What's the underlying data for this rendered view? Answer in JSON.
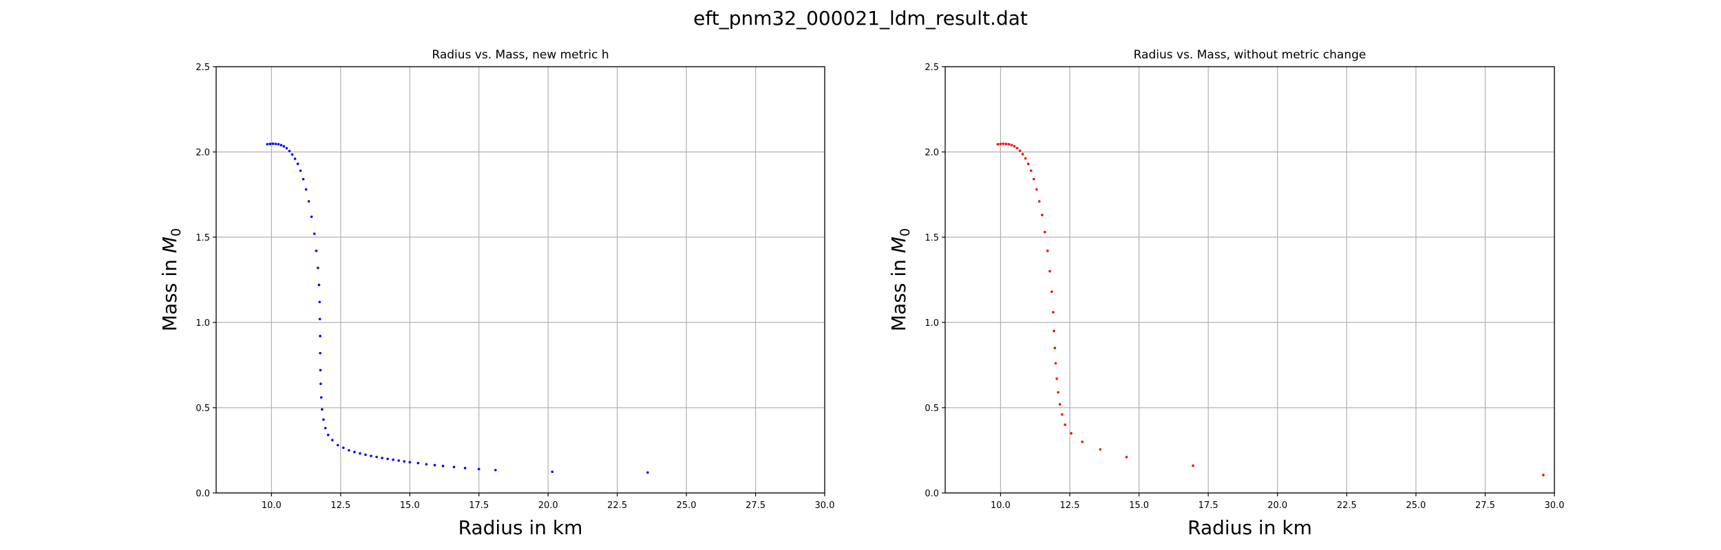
{
  "figure": {
    "title": "eft_pnm32_000021_ldm_result.dat"
  },
  "chart_data": [
    {
      "type": "scatter",
      "title": "Radius vs. Mass, new metric h",
      "xlabel": "Radius in km",
      "ylabel_prefix": "Mass in ",
      "ylabel_symbol": "M",
      "ylabel_subscript": "0",
      "xlim": [
        8.0,
        30.0
      ],
      "ylim": [
        0.0,
        2.5
      ],
      "xticks": [
        10.0,
        12.5,
        15.0,
        17.5,
        20.0,
        22.5,
        25.0,
        27.5,
        30.0
      ],
      "yticks": [
        0.0,
        0.5,
        1.0,
        1.5,
        2.0,
        2.5
      ],
      "grid": true,
      "series": [
        {
          "color": "#0000ff",
          "points": [
            [
              9.85,
              2.045
            ],
            [
              9.95,
              2.047
            ],
            [
              10.05,
              2.048
            ],
            [
              10.15,
              2.047
            ],
            [
              10.25,
              2.045
            ],
            [
              10.35,
              2.04
            ],
            [
              10.45,
              2.033
            ],
            [
              10.55,
              2.022
            ],
            [
              10.65,
              2.005
            ],
            [
              10.75,
              1.985
            ],
            [
              10.85,
              1.96
            ],
            [
              10.95,
              1.93
            ],
            [
              11.05,
              1.89
            ],
            [
              11.15,
              1.84
            ],
            [
              11.25,
              1.78
            ],
            [
              11.35,
              1.71
            ],
            [
              11.45,
              1.62
            ],
            [
              11.55,
              1.52
            ],
            [
              11.62,
              1.42
            ],
            [
              11.68,
              1.32
            ],
            [
              11.72,
              1.22
            ],
            [
              11.74,
              1.12
            ],
            [
              11.75,
              1.02
            ],
            [
              11.76,
              0.92
            ],
            [
              11.76,
              0.82
            ],
            [
              11.77,
              0.72
            ],
            [
              11.78,
              0.64
            ],
            [
              11.8,
              0.56
            ],
            [
              11.83,
              0.49
            ],
            [
              11.88,
              0.43
            ],
            [
              11.95,
              0.38
            ],
            [
              12.05,
              0.34
            ],
            [
              12.2,
              0.31
            ],
            [
              12.4,
              0.28
            ],
            [
              12.6,
              0.265
            ],
            [
              12.8,
              0.25
            ],
            [
              13.0,
              0.24
            ],
            [
              13.2,
              0.232
            ],
            [
              13.4,
              0.224
            ],
            [
              13.6,
              0.217
            ],
            [
              13.8,
              0.211
            ],
            [
              14.0,
              0.205
            ],
            [
              14.2,
              0.2
            ],
            [
              14.4,
              0.195
            ],
            [
              14.6,
              0.19
            ],
            [
              14.8,
              0.185
            ],
            [
              15.0,
              0.18
            ],
            [
              15.3,
              0.175
            ],
            [
              15.6,
              0.168
            ],
            [
              15.9,
              0.163
            ],
            [
              16.2,
              0.158
            ],
            [
              16.6,
              0.152
            ],
            [
              17.0,
              0.146
            ],
            [
              17.5,
              0.14
            ],
            [
              18.1,
              0.134
            ],
            [
              20.15,
              0.124
            ],
            [
              23.6,
              0.12
            ]
          ]
        }
      ]
    },
    {
      "type": "scatter",
      "title": "Radius vs. Mass, without metric change",
      "xlabel": "Radius in km",
      "ylabel_prefix": "Mass in ",
      "ylabel_symbol": "M",
      "ylabel_subscript": "0",
      "xlim": [
        8.0,
        30.0
      ],
      "ylim": [
        0.0,
        2.5
      ],
      "xticks": [
        10.0,
        12.5,
        15.0,
        17.5,
        20.0,
        22.5,
        25.0,
        27.5,
        30.0
      ],
      "yticks": [
        0.0,
        0.5,
        1.0,
        1.5,
        2.0,
        2.5
      ],
      "grid": true,
      "series": [
        {
          "color": "#ff0000",
          "points": [
            [
              9.9,
              2.045
            ],
            [
              10.0,
              2.047
            ],
            [
              10.1,
              2.048
            ],
            [
              10.2,
              2.047
            ],
            [
              10.3,
              2.045
            ],
            [
              10.4,
              2.04
            ],
            [
              10.5,
              2.033
            ],
            [
              10.6,
              2.022
            ],
            [
              10.7,
              2.007
            ],
            [
              10.8,
              1.987
            ],
            [
              10.9,
              1.962
            ],
            [
              11.0,
              1.93
            ],
            [
              11.1,
              1.89
            ],
            [
              11.2,
              1.84
            ],
            [
              11.3,
              1.78
            ],
            [
              11.4,
              1.71
            ],
            [
              11.5,
              1.63
            ],
            [
              11.6,
              1.53
            ],
            [
              11.7,
              1.42
            ],
            [
              11.78,
              1.3
            ],
            [
              11.85,
              1.18
            ],
            [
              11.9,
              1.06
            ],
            [
              11.93,
              0.95
            ],
            [
              11.96,
              0.85
            ],
            [
              11.99,
              0.76
            ],
            [
              12.03,
              0.67
            ],
            [
              12.08,
              0.59
            ],
            [
              12.14,
              0.52
            ],
            [
              12.22,
              0.46
            ],
            [
              12.33,
              0.4
            ],
            [
              12.55,
              0.35
            ],
            [
              12.95,
              0.3
            ],
            [
              13.6,
              0.255
            ],
            [
              14.55,
              0.21
            ],
            [
              16.95,
              0.16
            ],
            [
              29.6,
              0.105
            ]
          ]
        }
      ]
    }
  ]
}
